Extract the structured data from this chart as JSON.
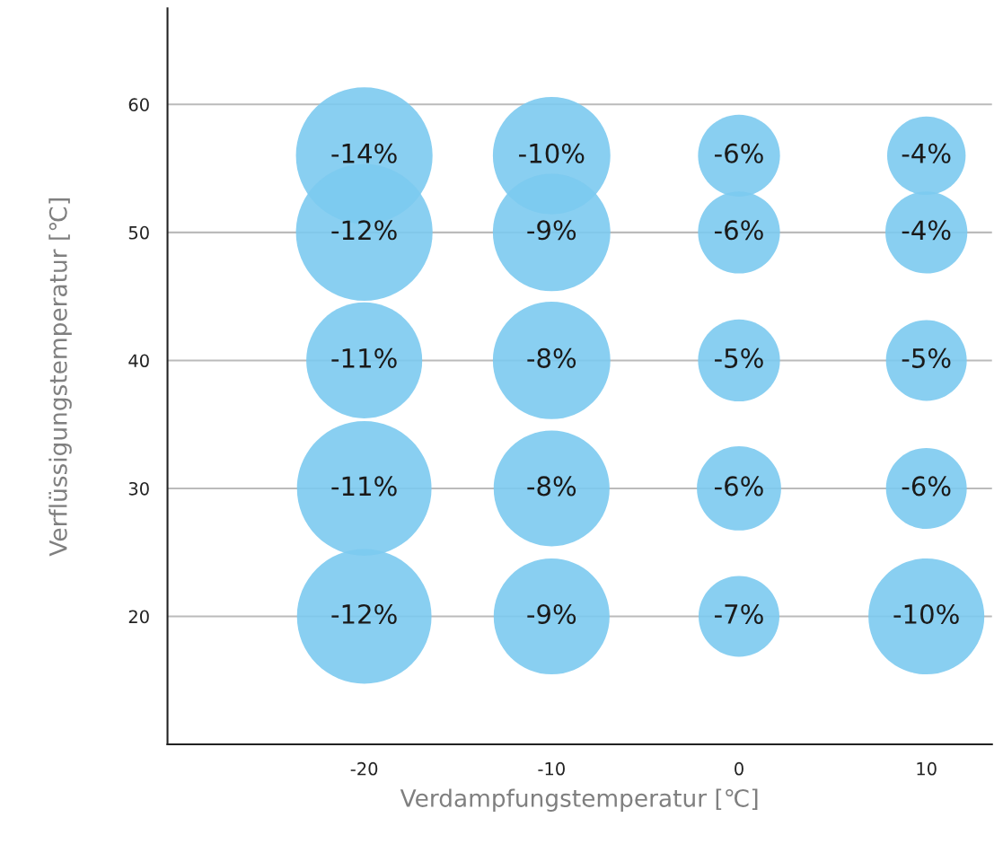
{
  "chart_data": {
    "type": "bubble",
    "xlabel": "Verdampfungstemperatur [℃]",
    "ylabel": "Verflüssigungstemperatur [℃]",
    "xlim": [
      -30.5,
      13.5
    ],
    "ylim": [
      10,
      67.5
    ],
    "xticks": [
      -20,
      -10,
      0,
      10
    ],
    "yticks": [
      20,
      30,
      40,
      50,
      60
    ],
    "grid": "y",
    "series": [
      {
        "color": "#7ccaf0",
        "x": [
          -20,
          -10,
          0,
          10,
          -20,
          -10,
          0,
          10,
          -20,
          -10,
          0,
          10,
          -20,
          -10,
          0,
          10,
          -20,
          -10,
          0,
          10
        ],
        "values": [
          56,
          56,
          56,
          56,
          50,
          50,
          50,
          50,
          40,
          40,
          40,
          40,
          30,
          30,
          30,
          30,
          20,
          20,
          20,
          20
        ],
        "sizes": [
          1,
          0.74,
          0.36,
          0.33,
          1,
          0.74,
          0.36,
          0.36,
          0.72,
          0.74,
          0.36,
          0.35,
          0.97,
          0.72,
          0.38,
          0.35,
          0.97,
          0.72,
          0.35,
          0.72
        ]
      }
    ],
    "annotations": [
      {
        "text": "-14%",
        "x": -20,
        "y": 56
      },
      {
        "text": "-10%",
        "x": -10,
        "y": 56
      },
      {
        "text": "-6%",
        "x": 0,
        "y": 56
      },
      {
        "text": "-4%",
        "x": 10,
        "y": 56
      },
      {
        "text": "-12%",
        "x": -20,
        "y": 50
      },
      {
        "text": "-9%",
        "x": -10,
        "y": 50
      },
      {
        "text": "-6%",
        "x": 0,
        "y": 50
      },
      {
        "text": "-4%",
        "x": 10,
        "y": 50
      },
      {
        "text": "-11%",
        "x": -20,
        "y": 40
      },
      {
        "text": "-8%",
        "x": -10,
        "y": 40
      },
      {
        "text": "-5%",
        "x": 0,
        "y": 40
      },
      {
        "text": "-5%",
        "x": 10,
        "y": 40
      },
      {
        "text": "-11%",
        "x": -20,
        "y": 30
      },
      {
        "text": "-8%",
        "x": -10,
        "y": 30
      },
      {
        "text": "-6%",
        "x": 0,
        "y": 30
      },
      {
        "text": "-6%",
        "x": 10,
        "y": 30
      },
      {
        "text": "-12%",
        "x": -20,
        "y": 20
      },
      {
        "text": "-9%",
        "x": -10,
        "y": 20
      },
      {
        "text": "-7%",
        "x": 0,
        "y": 20
      },
      {
        "text": "-10%",
        "x": 10,
        "y": 20
      }
    ]
  }
}
